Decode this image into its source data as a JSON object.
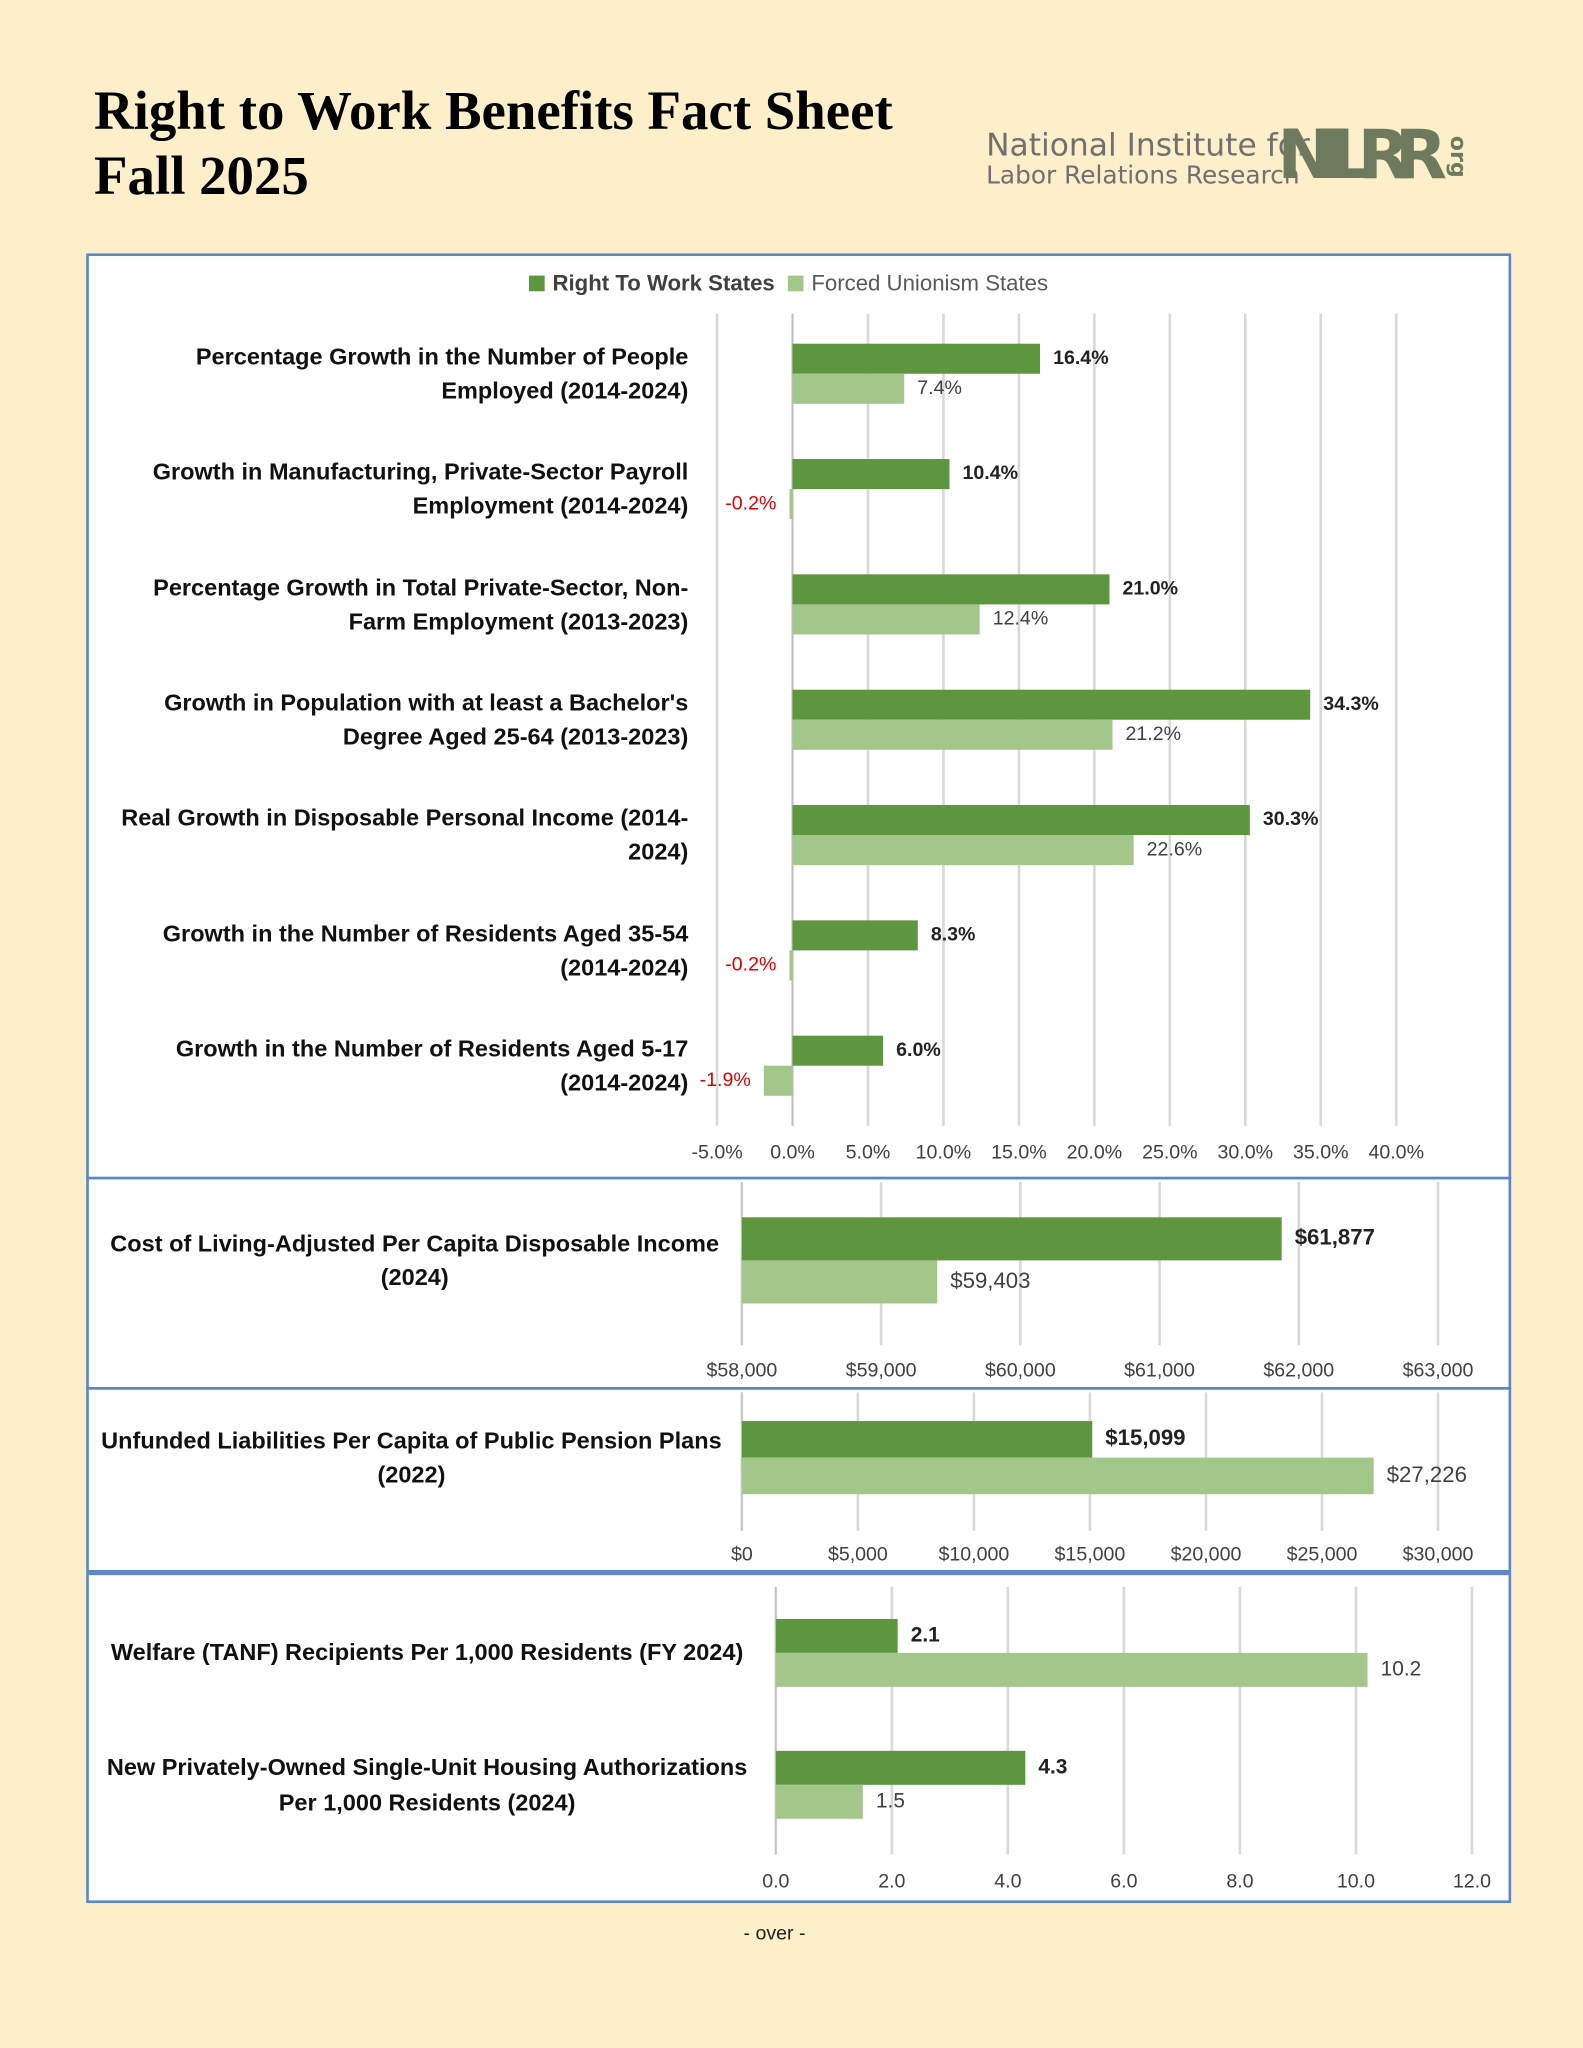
{
  "header": {
    "title_line1": "Right to Work Benefits Fact Sheet",
    "title_line2": "Fall 2025"
  },
  "logo": {
    "line1": "National Institute for",
    "line2": "Labor Relations Research",
    "mark": "NILRR",
    "suffix": "org"
  },
  "chart_data": [
    {
      "type": "hbar",
      "negative_label_color": "#e00000",
      "categories": [
        "Percentage Growth in the Number of People Employed (2014-2024)",
        "Growth in Manufacturing, Private-Sector Payroll Employment (2014-2024)",
        "Percentage Growth in Total Private-Sector, Non-Farm Employment (2013-2023)",
        "Growth in Population with at least a Bachelor's Degree Aged 25-64 (2013-2023)",
        "Real Growth in Disposable Personal Income (2014-2024)",
        "Growth in the Number of Residents Aged 35-54 (2014-2024)",
        "Growth in the Number of Residents Aged 5-17 (2014-2024)"
      ],
      "series": [
        {
          "name": "Right To Work States",
          "color": "#5e9640",
          "values": [
            16.4,
            10.4,
            21.0,
            34.3,
            30.3,
            8.3,
            6.0
          ],
          "value_labels": [
            "16.4%",
            "10.4%",
            "21.0%",
            "34.3%",
            "30.3%",
            "8.3%",
            "6.0%"
          ]
        },
        {
          "name": "Forced Unionism States",
          "color": "#a3c68a",
          "values": [
            7.4,
            -0.2,
            12.4,
            21.2,
            22.6,
            -0.2,
            -1.9
          ],
          "value_labels": [
            "7.4%",
            "-0.2%",
            "12.4%",
            "21.2%",
            "22.6%",
            "-0.2%",
            "-1.9%"
          ]
        }
      ],
      "xlim": [
        -5,
        40
      ],
      "grid": true,
      "xticks": [
        {
          "value": -5,
          "label": "-5.0%"
        },
        {
          "value": 0,
          "label": "0.0%"
        },
        {
          "value": 5,
          "label": "5.0%"
        },
        {
          "value": 10,
          "label": "10.0%"
        },
        {
          "value": 15,
          "label": "15.0%"
        },
        {
          "value": 20,
          "label": "20.0%"
        },
        {
          "value": 25,
          "label": "25.0%"
        },
        {
          "value": 30,
          "label": "30.0%"
        },
        {
          "value": 35,
          "label": "35.0%"
        },
        {
          "value": 40,
          "label": "40.0%"
        }
      ]
    },
    {
      "type": "hbar",
      "categories": [
        "Cost of Living-Adjusted Per Capita Disposable Income (2024)"
      ],
      "series": [
        {
          "color": "#5e9640",
          "values": [
            61877
          ],
          "value_labels": [
            "$61,877"
          ]
        },
        {
          "color": "#a3c68a",
          "values": [
            59403
          ],
          "value_labels": [
            "$59,403"
          ]
        }
      ],
      "xlim": [
        58000,
        63000
      ],
      "grid": true,
      "xticks": [
        {
          "value": 58000,
          "label": "$58,000"
        },
        {
          "value": 59000,
          "label": "$59,000"
        },
        {
          "value": 60000,
          "label": "$60,000"
        },
        {
          "value": 61000,
          "label": "$61,000"
        },
        {
          "value": 62000,
          "label": "$62,000"
        },
        {
          "value": 63000,
          "label": "$63,000"
        }
      ]
    },
    {
      "type": "hbar",
      "categories": [
        "Unfunded Liabilities Per Capita of Public Pension Plans (2022)"
      ],
      "series": [
        {
          "color": "#5e9640",
          "values": [
            15099
          ],
          "value_labels": [
            "$15,099"
          ]
        },
        {
          "color": "#a3c68a",
          "values": [
            27226
          ],
          "value_labels": [
            "$27,226"
          ]
        }
      ],
      "xlim": [
        0,
        30000
      ],
      "grid": true,
      "xticks": [
        {
          "value": 0,
          "label": "$0"
        },
        {
          "value": 5000,
          "label": "$5,000"
        },
        {
          "value": 10000,
          "label": "$10,000"
        },
        {
          "value": 15000,
          "label": "$15,000"
        },
        {
          "value": 20000,
          "label": "$20,000"
        },
        {
          "value": 25000,
          "label": "$25,000"
        },
        {
          "value": 30000,
          "label": "$30,000"
        }
      ]
    },
    {
      "type": "hbar",
      "categories": [
        "Welfare (TANF) Recipients Per 1,000 Residents (FY 2024)",
        "New Privately-Owned Single-Unit Housing Authorizations Per 1,000 Residents (2024)"
      ],
      "series": [
        {
          "color": "#5e9640",
          "values": [
            2.1,
            4.3
          ]
        },
        {
          "color": "#a3c68a",
          "values": [
            10.2,
            1.5
          ]
        }
      ],
      "xlim": [
        0,
        12
      ],
      "grid": true,
      "xticks": [
        {
          "value": 0,
          "label": "0.0"
        },
        {
          "value": 2,
          "label": "2.0"
        },
        {
          "value": 4,
          "label": "4.0"
        },
        {
          "value": 6,
          "label": "6.0"
        },
        {
          "value": 8,
          "label": "8.0"
        },
        {
          "value": 10,
          "label": "10.0"
        },
        {
          "value": 12,
          "label": "12.0"
        }
      ]
    }
  ],
  "footer": "- over -"
}
